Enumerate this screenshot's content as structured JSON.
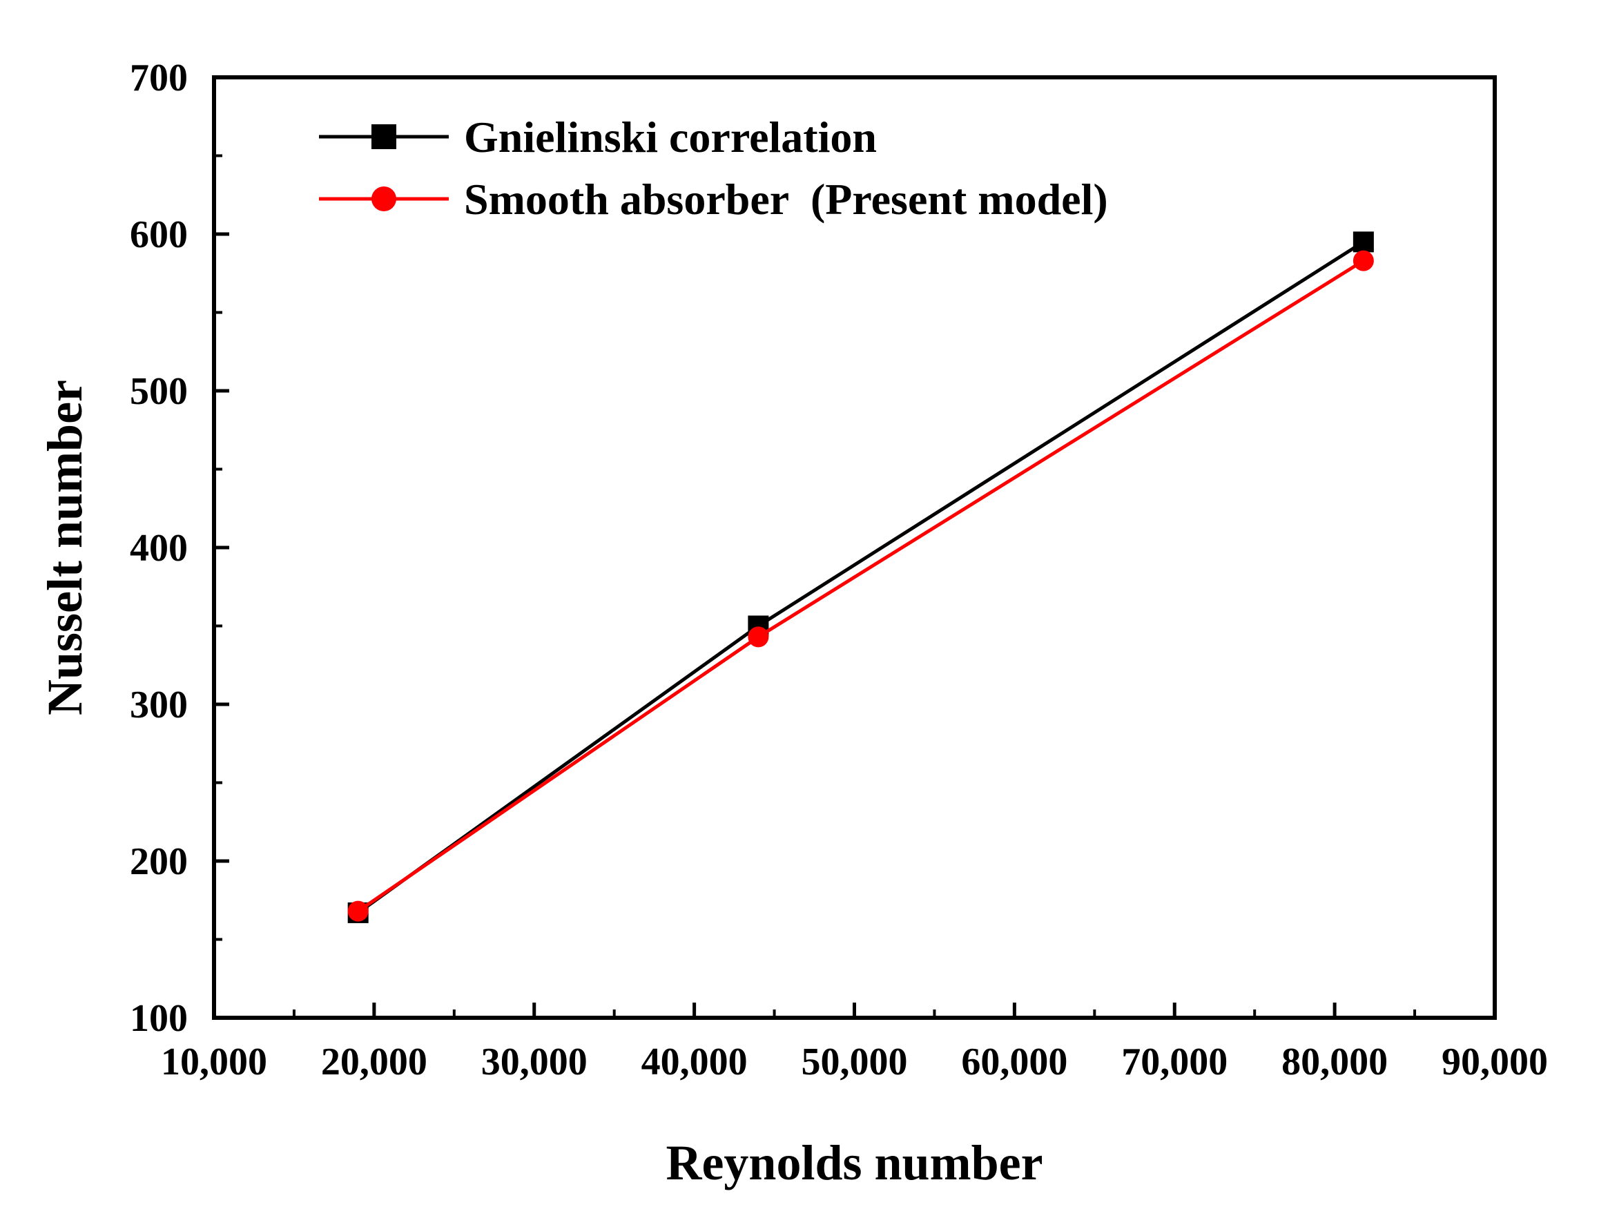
{
  "chart_data": {
    "type": "line",
    "title": "",
    "xlabel": "Reynolds number",
    "ylabel": "Nusselt number",
    "xlim": [
      10000,
      90000
    ],
    "ylim": [
      100,
      700
    ],
    "xticks": [
      10000,
      20000,
      30000,
      40000,
      50000,
      60000,
      70000,
      80000,
      90000
    ],
    "xtick_labels": [
      "10,000",
      "20,000",
      "30,000",
      "40,000",
      "50,000",
      "60,000",
      "70,000",
      "80,000",
      "90,000"
    ],
    "yticks": [
      100,
      200,
      300,
      400,
      500,
      600,
      700
    ],
    "ytick_labels": [
      "100",
      "200",
      "300",
      "400",
      "500",
      "600",
      "700"
    ],
    "grid": false,
    "legend_position": "top-left",
    "series": [
      {
        "name": "Gnielinski correlation",
        "color": "#000000",
        "marker": "square",
        "x": [
          19000,
          44000,
          81800
        ],
        "y": [
          167,
          350,
          595
        ]
      },
      {
        "name": "Smooth absorber  (Present model)",
        "color": "#ff0000",
        "marker": "circle",
        "x": [
          19000,
          44000,
          81800
        ],
        "y": [
          168,
          343,
          583
        ]
      }
    ]
  }
}
